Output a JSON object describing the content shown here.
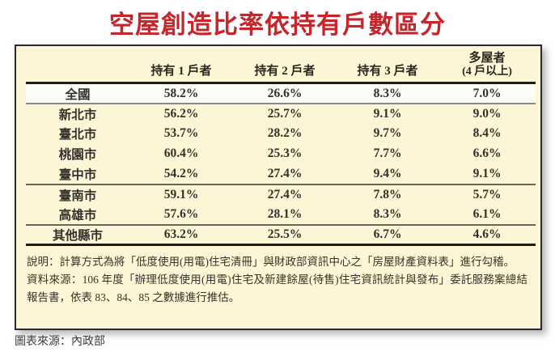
{
  "colors": {
    "title_red": "#c5262b",
    "panel_bg": "#fdf6d6",
    "highlight_blue": "#2c3a94",
    "highlight_bg": "#fcfcf6",
    "rule_dark": "#1c1c1c"
  },
  "title": "空屋創造比率依持有戶數區分",
  "table": {
    "columns": [
      "持有 1 戶者",
      "持有 2 戶者",
      "持有 3 戶者"
    ],
    "column_multi": {
      "line1": "多屋者",
      "line2": "(4 戶以上)"
    },
    "rows": [
      {
        "label": "全國",
        "values": [
          "58.2%",
          "26.6%",
          "8.3%",
          "7.0%"
        ]
      },
      {
        "label": "新北市",
        "values": [
          "56.2%",
          "25.7%",
          "9.1%",
          "9.0%"
        ]
      },
      {
        "label": "臺北市",
        "values": [
          "53.7%",
          "28.2%",
          "9.7%",
          "8.4%"
        ]
      },
      {
        "label": "桃園市",
        "values": [
          "60.4%",
          "25.3%",
          "7.7%",
          "6.6%"
        ]
      },
      {
        "label": "臺中市",
        "values": [
          "54.2%",
          "27.4%",
          "9.4%",
          "9.1%"
        ]
      },
      {
        "label": "臺南市",
        "values": [
          "59.1%",
          "27.4%",
          "7.8%",
          "5.7%"
        ]
      },
      {
        "label": "高雄市",
        "values": [
          "57.6%",
          "28.1%",
          "8.3%",
          "6.1%"
        ]
      },
      {
        "label": "其他縣市",
        "values": [
          "63.2%",
          "25.5%",
          "6.7%",
          "4.6%"
        ]
      }
    ]
  },
  "notes": {
    "line1": "說明：計算方式為將「低度使用(用電)住宅清冊」與財政部資訊中心之「房屋財產資料表」進行勾稽。",
    "line2": "資料來源：106 年度「辦理低度使用(用電)住宅及新建餘屋(待售)住宅資訊統計與發布」委託服務案總結報告書，依表 83、84、85 之數據進行推估。"
  },
  "caption": "圖表來源：內政部",
  "chart_data": {
    "type": "table",
    "title": "空屋創造比率依持有戶數區分",
    "columns": [
      "持有1戶者",
      "持有2戶者",
      "持有3戶者",
      "多屋者(4戶以上)"
    ],
    "rows": [
      "全國",
      "新北市",
      "臺北市",
      "桃園市",
      "臺中市",
      "臺南市",
      "高雄市",
      "其他縣市"
    ],
    "values_percent": [
      [
        58.2,
        26.6,
        8.3,
        7.0
      ],
      [
        56.2,
        25.7,
        9.1,
        9.0
      ],
      [
        53.7,
        28.2,
        9.7,
        8.4
      ],
      [
        60.4,
        25.3,
        7.7,
        6.6
      ],
      [
        54.2,
        27.4,
        9.4,
        9.1
      ],
      [
        59.1,
        27.4,
        7.8,
        5.7
      ],
      [
        57.6,
        28.1,
        8.3,
        6.1
      ],
      [
        63.2,
        25.5,
        6.7,
        4.6
      ]
    ],
    "unit": "%",
    "highlighted_row": "全國",
    "source": "內政部"
  }
}
